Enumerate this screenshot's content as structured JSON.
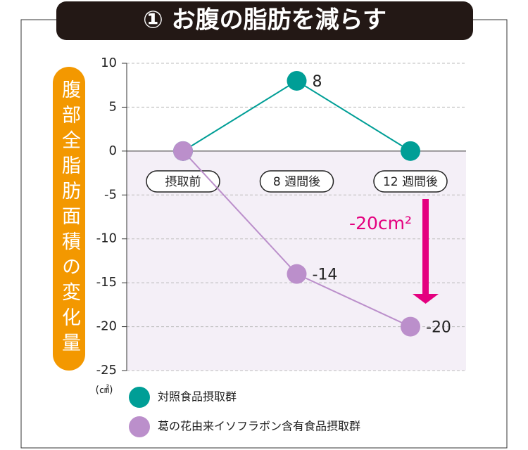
{
  "chart_data": {
    "type": "line",
    "title": "① お腹の脂肪を減らす",
    "y_label": "腹部全脂肪面積の変化量",
    "unit": "(㎠)",
    "annotation": "-20cm²",
    "categories": [
      "摂取前",
      "8 週間後",
      "12 週間後"
    ],
    "series": [
      {
        "name": "対照食品摂取群",
        "color": "#009e96",
        "values": [
          0,
          8,
          0
        ],
        "value_labels": [
          null,
          "8",
          null
        ]
      },
      {
        "name": "葛の花由来イソフラボン含有食品摂取群",
        "color": "#bb8fcb",
        "values": [
          0,
          -14,
          -20
        ],
        "value_labels": [
          null,
          "-14",
          "-20"
        ]
      }
    ],
    "ylim": [
      -25,
      10
    ],
    "yticks": [
      -25,
      -20,
      -15,
      -10,
      -5,
      0,
      5,
      10
    ],
    "grid": true,
    "annotation_color": "#e4007f",
    "negative_shade": "#f4eff7"
  }
}
